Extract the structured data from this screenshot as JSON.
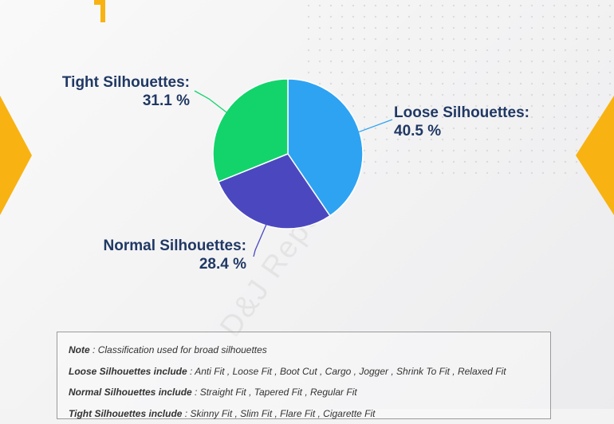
{
  "chart_data": {
    "type": "pie",
    "slices": [
      {
        "label": "Loose Silhouettes:",
        "value": 40.5,
        "display": "40.5 %",
        "color": "#2ea3f2"
      },
      {
        "label": "Normal Silhouettes:",
        "value": 28.4,
        "display": "28.4 %",
        "color": "#4b48bf"
      },
      {
        "label": "Tight Silhouettes:",
        "value": 31.1,
        "display": "31.1 %",
        "color": "#12d46b"
      }
    ],
    "start_angle_deg": 0,
    "direction": "clockwise"
  },
  "watermark": "D&J Reports",
  "notes": [
    {
      "key": "Note",
      "text": "Classification used for broad silhouettes"
    },
    {
      "key": "Loose Silhouettes include",
      "text": "Anti Fit , Loose Fit , Boot Cut , Cargo , Jogger , Shrink To Fit , Relaxed Fit"
    },
    {
      "key": "Normal Silhouettes include",
      "text": "Straight Fit , Tapered Fit , Regular Fit"
    },
    {
      "key": "Tight Silhouettes include",
      "text": "Skinny Fit , Slim Fit , Flare Fit , Cigarette Fit"
    }
  ],
  "colors": {
    "accent": "#f8b313",
    "label_text": "#203864"
  }
}
